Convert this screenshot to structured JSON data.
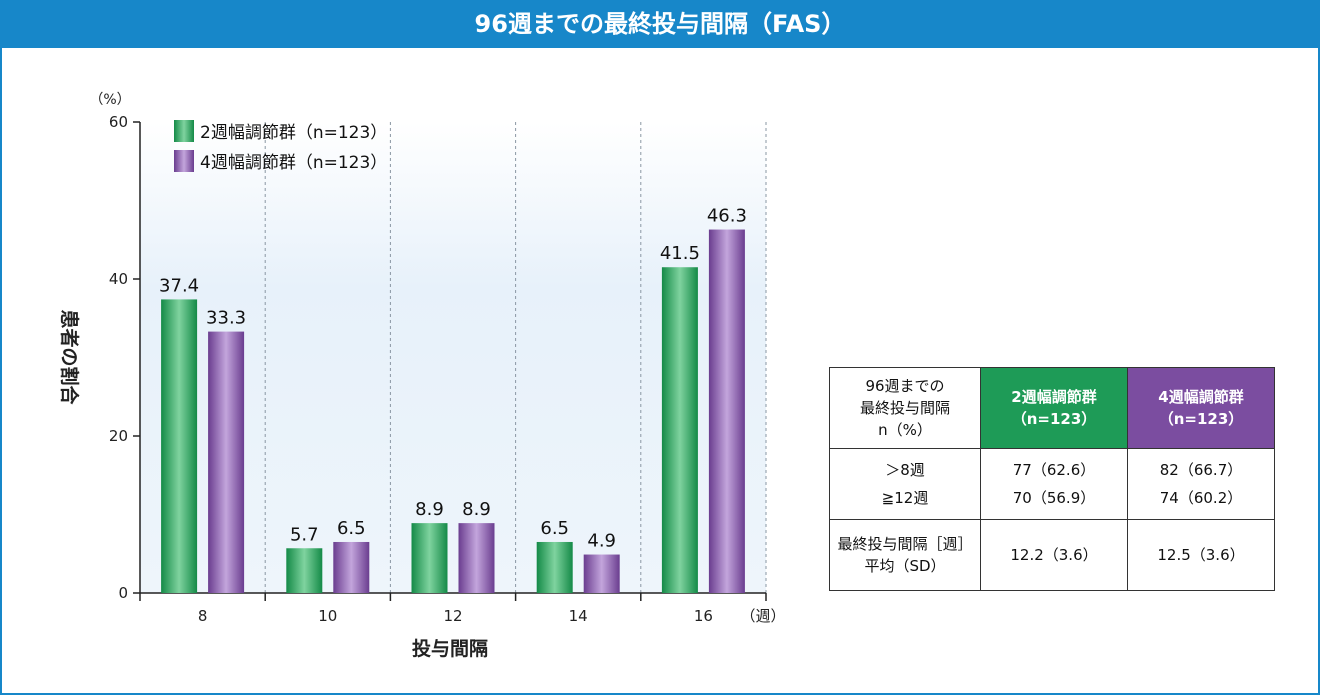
{
  "title": "96週までの最終投与間隔（FAS）",
  "chart_data": {
    "type": "bar",
    "categories": [
      "8",
      "10",
      "12",
      "14",
      "16"
    ],
    "series": [
      {
        "name": "2週幅調節群（n=123）",
        "values": [
          37.4,
          5.7,
          8.9,
          6.5,
          41.5
        ],
        "color": "#22a35a"
      },
      {
        "name": "4週幅調節群（n=123）",
        "values": [
          33.3,
          6.5,
          8.9,
          4.9,
          46.3
        ],
        "color": "#7d4ea3"
      }
    ],
    "data_labels": [
      [
        "37.4",
        "5.7",
        "8.9",
        "6.5",
        "41.5"
      ],
      [
        "33.3",
        "6.5",
        "8.9",
        "4.9",
        "46.3"
      ]
    ],
    "xlabel": "投与間隔",
    "x_unit": "（週）",
    "ylabel": "患者の割合",
    "y_unit": "（%）",
    "ylim": [
      0,
      60
    ],
    "yticks": [
      "0",
      "20",
      "40",
      "60"
    ],
    "grid": "vertical dashed",
    "legend": "top-left"
  },
  "table": {
    "header": [
      "96週までの\n最終投与間隔\nn（%）",
      "2週幅調節群\n（n=123）",
      "4週幅調節群\n（n=123）"
    ],
    "rows": [
      [
        "＞8週\n≧12週",
        "77（62.6）\n70（56.9）",
        "82（66.7）\n74（60.2）"
      ],
      [
        "最終投与間隔［週］\n平均（SD）",
        "12.2（3.6）",
        "12.5（3.6）"
      ]
    ],
    "colors": {
      "group1": "#1e9b57",
      "group2": "#7b4da0"
    }
  }
}
